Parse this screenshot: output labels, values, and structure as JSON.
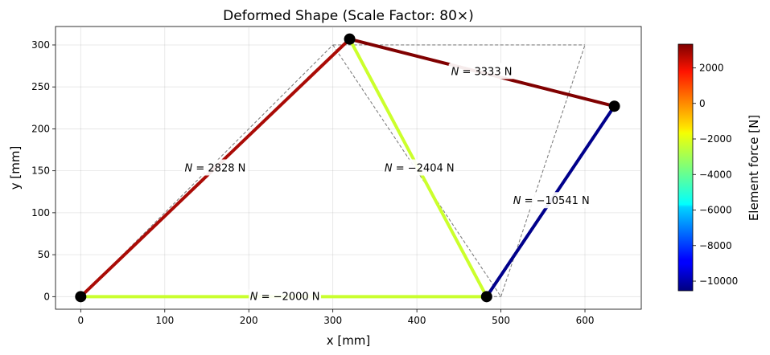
{
  "chart_data": {
    "type": "line",
    "title": "Deformed Shape (Scale Factor: 80×)",
    "xlabel": "x [mm]",
    "ylabel": "y [mm]",
    "xlim": [
      -30,
      667
    ],
    "ylim": [
      -15,
      322
    ],
    "xticks": [
      0,
      100,
      200,
      300,
      400,
      500,
      600
    ],
    "yticks": [
      0,
      50,
      100,
      150,
      200,
      250,
      300
    ],
    "grid": true,
    "undeformed_nodes": [
      [
        0,
        0
      ],
      [
        300,
        300
      ],
      [
        500,
        0
      ],
      [
        600,
        300
      ]
    ],
    "deformed_nodes": [
      [
        0,
        0
      ],
      [
        320,
        307
      ],
      [
        483,
        0
      ],
      [
        635,
        227
      ]
    ],
    "elements": [
      {
        "n1": 0,
        "n2": 1,
        "force": 2828,
        "color": "#aa0b06",
        "label": "N = 2828 N",
        "label_x": 160,
        "label_y": 154
      },
      {
        "n1": 0,
        "n2": 2,
        "force": -2000,
        "color": "#c9ff2e",
        "label": "N = −2000 N",
        "label_x": 243,
        "label_y": 1
      },
      {
        "n1": 1,
        "n2": 2,
        "force": -2404,
        "color": "#cbff2c",
        "label": "N = −2404 N",
        "label_x": 403,
        "label_y": 154
      },
      {
        "n1": 1,
        "n2": 3,
        "force": 3333,
        "color": "#800000",
        "label": "N = 3333 N",
        "label_x": 477,
        "label_y": 269
      },
      {
        "n1": 2,
        "n2": 3,
        "force": -10541,
        "color": "#00008b",
        "label": "N = −10541 N",
        "label_x": 560,
        "label_y": 115
      }
    ],
    "colorbar": {
      "label": "Element force [N]",
      "min": -10541,
      "max": 3333,
      "ticks": [
        2000,
        0,
        -2000,
        -4000,
        -6000,
        -8000,
        -10000
      ]
    }
  }
}
